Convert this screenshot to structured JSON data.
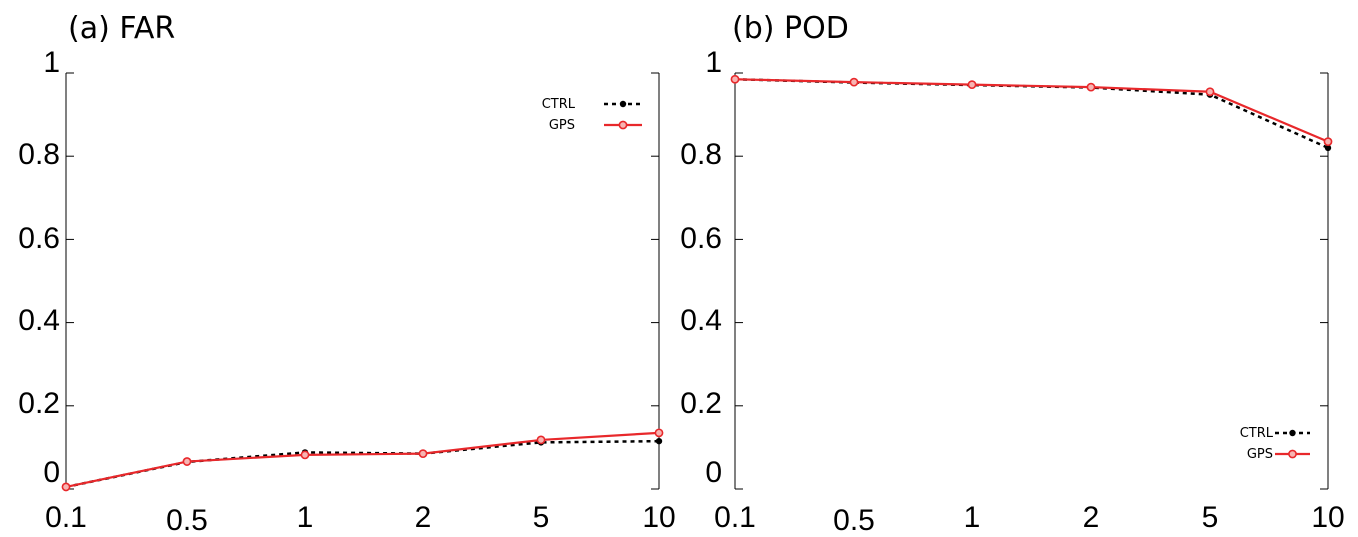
{
  "chart_data": [
    {
      "type": "line",
      "title": "(a) FAR",
      "categories": [
        "0.1",
        "0.5",
        "1",
        "2",
        "5",
        "10"
      ],
      "ylim": [
        0,
        1
      ],
      "yticks": [
        "0",
        "0.2",
        "0.4",
        "0.6",
        "0.8",
        "1"
      ],
      "grid": false,
      "legend_position": "top-right",
      "series": [
        {
          "name": "CTRL",
          "color": "#000000",
          "style": "dotted",
          "marker": "filled-circle",
          "values": [
            0.005,
            0.065,
            0.088,
            0.085,
            0.112,
            0.115
          ]
        },
        {
          "name": "GPS",
          "color": "#e8282b",
          "style": "solid",
          "marker": "open-circle",
          "values": [
            0.005,
            0.066,
            0.082,
            0.085,
            0.118,
            0.135
          ]
        }
      ]
    },
    {
      "type": "line",
      "title": "(b) POD",
      "categories": [
        "0.1",
        "0.5",
        "1",
        "2",
        "5",
        "10"
      ],
      "ylim": [
        0,
        1
      ],
      "yticks": [
        "0",
        "0.2",
        "0.4",
        "0.6",
        "0.8",
        "1"
      ],
      "grid": false,
      "legend_position": "bottom-right",
      "series": [
        {
          "name": "CTRL",
          "color": "#000000",
          "style": "dotted",
          "marker": "filled-circle",
          "values": [
            0.985,
            0.977,
            0.971,
            0.965,
            0.948,
            0.82
          ]
        },
        {
          "name": "GPS",
          "color": "#e8282b",
          "style": "solid",
          "marker": "open-circle",
          "values": [
            0.985,
            0.978,
            0.972,
            0.966,
            0.955,
            0.835
          ]
        }
      ]
    }
  ]
}
